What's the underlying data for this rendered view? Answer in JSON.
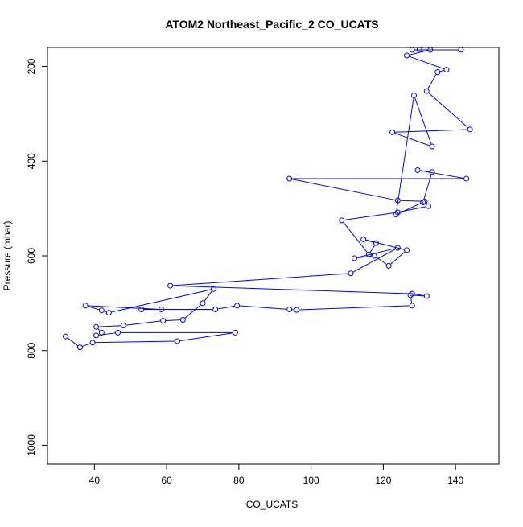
{
  "chart_data": {
    "type": "line",
    "title": "ATOM2 Northeast_Pacific_2 CO_UCATS",
    "xlabel": "CO_UCATS",
    "ylabel": "Pressure (mbar)",
    "xlim": [
      27,
      152
    ],
    "ylim": [
      1040,
      160
    ],
    "y_reversed": true,
    "grid": false,
    "xticks": [
      40,
      60,
      80,
      100,
      120,
      140
    ],
    "yticks": [
      200,
      400,
      600,
      800,
      1000
    ],
    "series": [
      {
        "color": "#0000ff",
        "marker": "open-circle",
        "points": [
          [
            32,
            770
          ],
          [
            36,
            793
          ],
          [
            39.5,
            783
          ],
          [
            63,
            780
          ],
          [
            79,
            762
          ],
          [
            46.5,
            762
          ],
          [
            40.5,
            768
          ],
          [
            42,
            762
          ],
          [
            40.5,
            750
          ],
          [
            48,
            747
          ],
          [
            59,
            737
          ],
          [
            64.5,
            735
          ],
          [
            70,
            700
          ],
          [
            73,
            670
          ],
          [
            44,
            720
          ],
          [
            42,
            715
          ],
          [
            37.5,
            705
          ],
          [
            58.5,
            713
          ],
          [
            53,
            713
          ],
          [
            73.5,
            713
          ],
          [
            79.5,
            705
          ],
          [
            94,
            713
          ],
          [
            96,
            714
          ],
          [
            128,
            705
          ],
          [
            127.5,
            683
          ],
          [
            132,
            685
          ],
          [
            128,
            680
          ],
          [
            61,
            663
          ],
          [
            111,
            637
          ],
          [
            124,
            583
          ],
          [
            112,
            605
          ],
          [
            117.5,
            600
          ],
          [
            121.5,
            621
          ],
          [
            126.5,
            588
          ],
          [
            114.5,
            565
          ],
          [
            118,
            573
          ],
          [
            116,
            597
          ],
          [
            108.5,
            525
          ],
          [
            124,
            508
          ],
          [
            132.5,
            495
          ],
          [
            131,
            487
          ],
          [
            133.5,
            423
          ],
          [
            129.5,
            419
          ],
          [
            143,
            437
          ],
          [
            94,
            437
          ],
          [
            124,
            483
          ],
          [
            131.5,
            485
          ],
          [
            123.5,
            513
          ],
          [
            128.5,
            261
          ],
          [
            133.5,
            369
          ],
          [
            122.5,
            339
          ],
          [
            144,
            333
          ],
          [
            132,
            252
          ],
          [
            135,
            212
          ],
          [
            137.5,
            207
          ],
          [
            126.5,
            177
          ],
          [
            133,
            165
          ],
          [
            130,
            165
          ],
          [
            128,
            165
          ],
          [
            141.5,
            165
          ]
        ]
      }
    ]
  }
}
